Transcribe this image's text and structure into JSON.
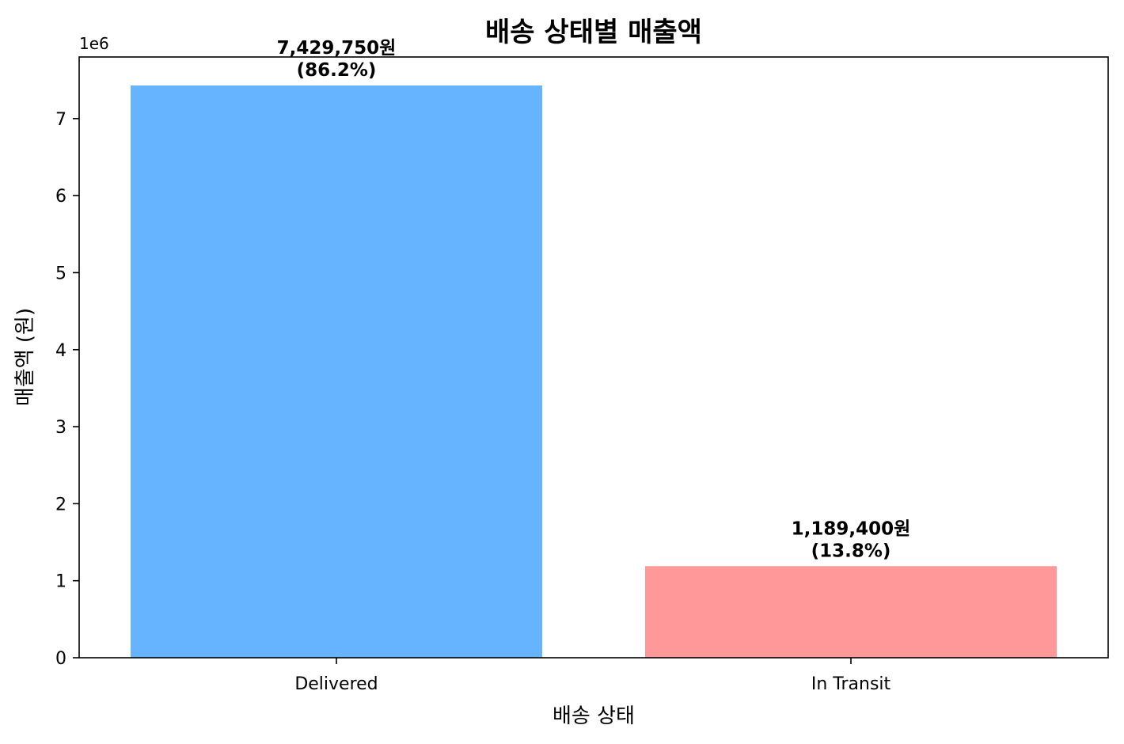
{
  "chart_data": {
    "type": "bar",
    "title": "배송 상태별 매출액",
    "xlabel": "배송 상태",
    "ylabel": "매출액 (원)",
    "y_offset_text": "1e6",
    "categories": [
      "Delivered",
      "In Transit"
    ],
    "values": [
      7429750,
      1189400
    ],
    "value_labels": [
      "7,429,750원",
      "1,189,400원"
    ],
    "percent_labels": [
      "(86.2%)",
      "(13.8%)"
    ],
    "colors": [
      "#66b3ff",
      "#ff9999"
    ],
    "ylim": [
      0,
      7800000
    ],
    "yticks": [
      0,
      1,
      2,
      3,
      4,
      5,
      6,
      7
    ],
    "ytick_scale": 1000000,
    "grid": false,
    "legend": "none"
  }
}
